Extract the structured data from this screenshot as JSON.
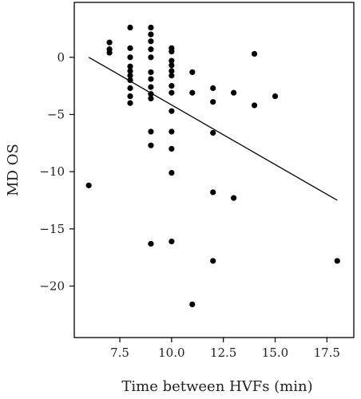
{
  "chart_data": {
    "type": "scatter",
    "title": "",
    "xlabel": "Time between HVFs (min)",
    "ylabel": "MD OS",
    "xlim": [
      5.3,
      18.8
    ],
    "ylim": [
      -24.5,
      4.8
    ],
    "xticks": [
      7.5,
      10.0,
      12.5,
      15.0,
      17.5
    ],
    "xtick_labels": [
      "7.5",
      "10.0",
      "12.5",
      "15.0",
      "17.5"
    ],
    "yticks": [
      0,
      -5,
      -10,
      -15,
      -20
    ],
    "ytick_labels": [
      "0",
      "−5",
      "−10",
      "−15",
      "−20"
    ],
    "grid": false,
    "legend": "none",
    "colors": {
      "points": "#000000",
      "line": "#000000",
      "frame": "#000000"
    },
    "fit_line": {
      "x": [
        6,
        18
      ],
      "y": [
        0.0,
        -12.5
      ]
    },
    "points": [
      {
        "x": 6,
        "y": -11.2
      },
      {
        "x": 7,
        "y": 1.3
      },
      {
        "x": 7,
        "y": 0.7
      },
      {
        "x": 7,
        "y": 0.4
      },
      {
        "x": 8,
        "y": 2.6
      },
      {
        "x": 8,
        "y": 0.8
      },
      {
        "x": 8,
        "y": 0.0
      },
      {
        "x": 8,
        "y": -0.8
      },
      {
        "x": 8,
        "y": -1.2
      },
      {
        "x": 8,
        "y": -1.6
      },
      {
        "x": 8,
        "y": -2.0
      },
      {
        "x": 8,
        "y": -2.7
      },
      {
        "x": 8,
        "y": -3.4
      },
      {
        "x": 8,
        "y": -4.0
      },
      {
        "x": 9,
        "y": 2.6
      },
      {
        "x": 9,
        "y": 2.0
      },
      {
        "x": 9,
        "y": 1.4
      },
      {
        "x": 9,
        "y": 0.7
      },
      {
        "x": 9,
        "y": 0.0
      },
      {
        "x": 9,
        "y": -1.3
      },
      {
        "x": 9,
        "y": -1.9
      },
      {
        "x": 9,
        "y": -2.6
      },
      {
        "x": 9,
        "y": -3.2
      },
      {
        "x": 9,
        "y": -3.6
      },
      {
        "x": 9,
        "y": -6.5
      },
      {
        "x": 9,
        "y": -7.7
      },
      {
        "x": 9,
        "y": -16.3
      },
      {
        "x": 10,
        "y": 0.8
      },
      {
        "x": 10,
        "y": 0.5
      },
      {
        "x": 10,
        "y": -0.3
      },
      {
        "x": 10,
        "y": -0.7
      },
      {
        "x": 10,
        "y": -1.2
      },
      {
        "x": 10,
        "y": -1.6
      },
      {
        "x": 10,
        "y": -2.5
      },
      {
        "x": 10,
        "y": -3.1
      },
      {
        "x": 10,
        "y": -4.7
      },
      {
        "x": 10,
        "y": -6.5
      },
      {
        "x": 10,
        "y": -8.0
      },
      {
        "x": 10,
        "y": -10.1
      },
      {
        "x": 10,
        "y": -16.1
      },
      {
        "x": 11,
        "y": -1.3
      },
      {
        "x": 11,
        "y": -3.1
      },
      {
        "x": 11,
        "y": -21.6
      },
      {
        "x": 12,
        "y": -2.7
      },
      {
        "x": 12,
        "y": -3.9
      },
      {
        "x": 12,
        "y": -6.6
      },
      {
        "x": 12,
        "y": -11.8
      },
      {
        "x": 12,
        "y": -17.8
      },
      {
        "x": 13,
        "y": -3.1
      },
      {
        "x": 13,
        "y": -12.3
      },
      {
        "x": 14,
        "y": 0.3
      },
      {
        "x": 14,
        "y": -4.2
      },
      {
        "x": 15,
        "y": -3.4
      },
      {
        "x": 18,
        "y": -17.8
      }
    ]
  }
}
